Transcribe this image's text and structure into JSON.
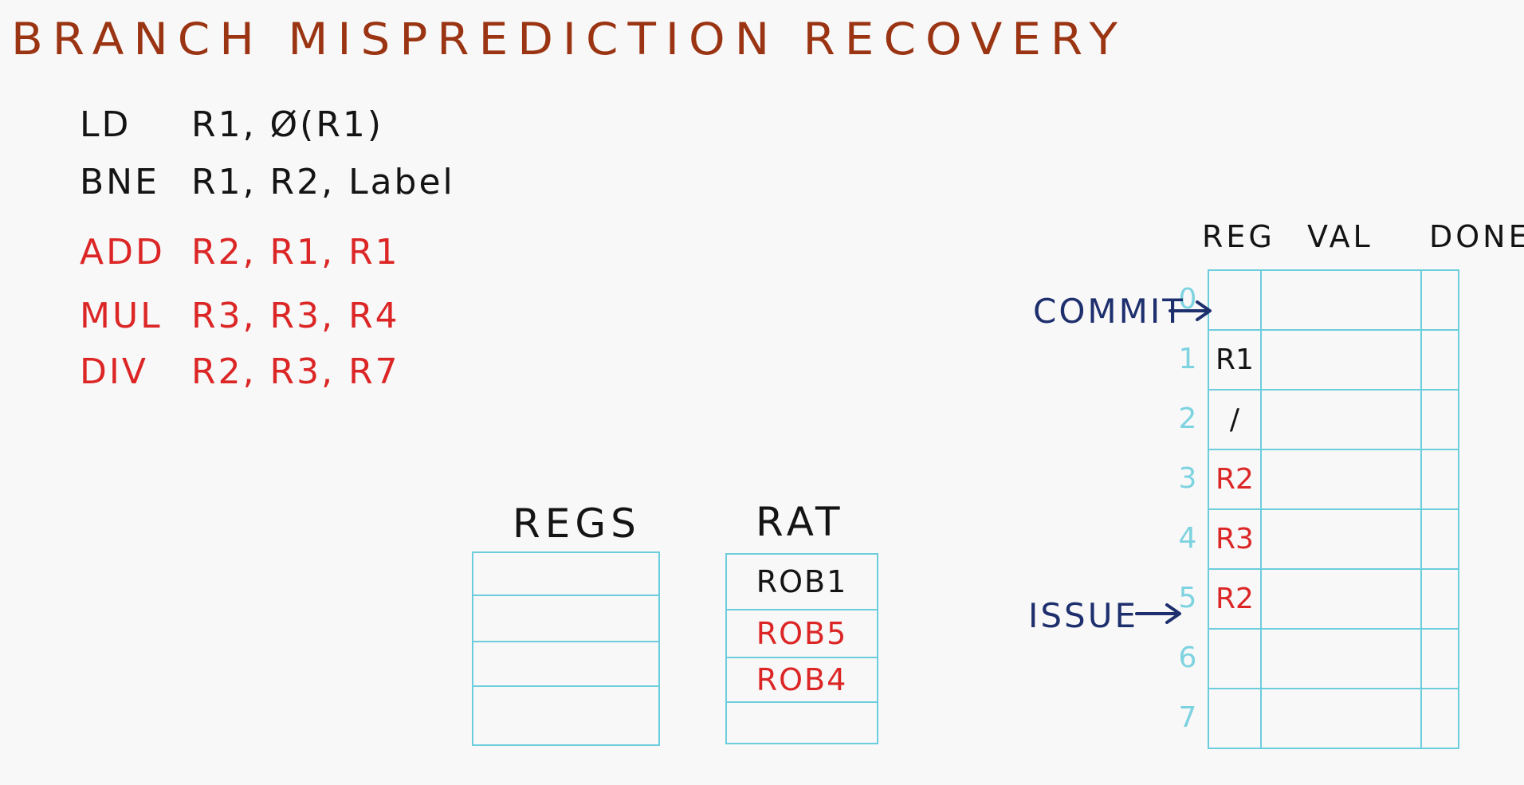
{
  "title": "BRANCH MISPREDICTION RECOVERY",
  "colors": {
    "title": "#9a3412",
    "black_ink": "#141414",
    "red_ink": "#dc2626",
    "navy_ink": "#1e2f6e",
    "table_lines": "#6ccddd"
  },
  "instructions": [
    {
      "op": "LD",
      "args": "R1, Ø(R1)",
      "color": "black"
    },
    {
      "op": "BNE",
      "args": "R1, R2, Label",
      "color": "black"
    },
    {
      "op": "ADD",
      "args": "R2, R1, R1",
      "color": "red"
    },
    {
      "op": "MUL",
      "args": "R3, R3, R4",
      "color": "red"
    },
    {
      "op": "DIV",
      "args": "R2, R3, R7",
      "color": "red"
    }
  ],
  "regs": {
    "header": "REGS",
    "rows": [
      "",
      "",
      "",
      ""
    ]
  },
  "rat": {
    "header": "RAT",
    "rows": [
      {
        "text": "ROB1",
        "color": "black"
      },
      {
        "text": "ROB5",
        "color": "red"
      },
      {
        "text": "ROB4",
        "color": "red"
      },
      {
        "text": "",
        "color": "black"
      }
    ]
  },
  "rob": {
    "headers": {
      "reg": "REG",
      "val": "VAL",
      "done": "DONE"
    },
    "rows": [
      {
        "index": "0",
        "reg": "",
        "color": "black"
      },
      {
        "index": "1",
        "reg": "R1",
        "color": "black"
      },
      {
        "index": "2",
        "reg": "/",
        "color": "black"
      },
      {
        "index": "3",
        "reg": "R2",
        "color": "red"
      },
      {
        "index": "4",
        "reg": "R3",
        "color": "red"
      },
      {
        "index": "5",
        "reg": "R2",
        "color": "red"
      },
      {
        "index": "6",
        "reg": "",
        "color": "black"
      },
      {
        "index": "7",
        "reg": "",
        "color": "black"
      }
    ]
  },
  "pointers": {
    "commit": "COMMIT",
    "issue": "ISSUE"
  }
}
